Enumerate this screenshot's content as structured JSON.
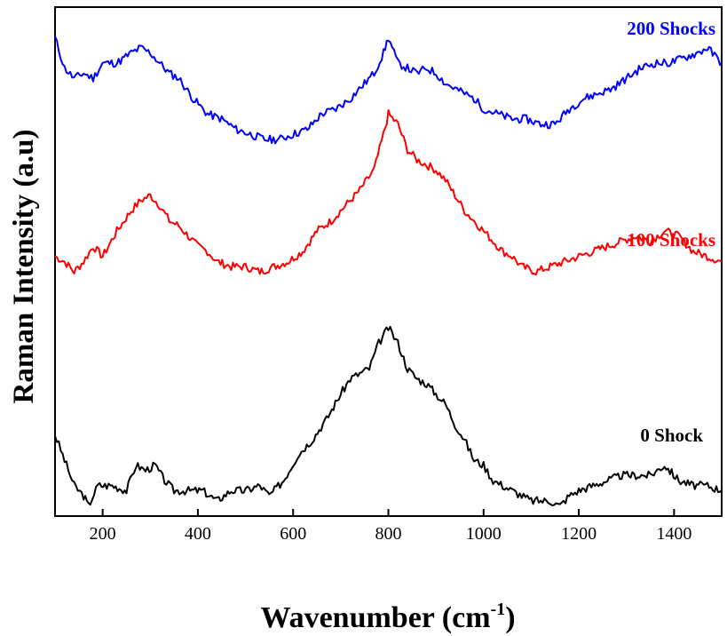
{
  "chart_data": {
    "type": "line",
    "title": "",
    "xlabel": "Wavenumber (cm",
    "xlabel_sup": "-1",
    "xlabel_close": ")",
    "ylabel": "Raman Intensity (a.u)",
    "xlim": [
      100,
      1500
    ],
    "ylim": [
      0,
      100
    ],
    "x_ticks": [
      200,
      400,
      600,
      800,
      1000,
      1200,
      1400
    ],
    "y_ticks_visible": false,
    "grid": false,
    "series": [
      {
        "name": "0 Shock",
        "color": "#000000",
        "x": [
          100,
          120,
          140,
          160,
          170,
          190,
          220,
          250,
          270,
          290,
          310,
          330,
          350,
          380,
          410,
          440,
          470,
          500,
          530,
          550,
          580,
          610,
          640,
          670,
          700,
          720,
          740,
          760,
          780,
          800,
          820,
          840,
          860,
          880,
          900,
          920,
          940,
          960,
          980,
          1000,
          1020,
          1040,
          1060,
          1080,
          1100,
          1120,
          1140,
          1160,
          1180,
          1200,
          1230,
          1260,
          1290,
          1320,
          1350,
          1380,
          1410,
          1440,
          1470,
          1500
        ],
        "y": [
          16,
          11,
          6,
          4,
          2,
          6,
          6,
          5,
          10,
          9,
          10,
          7,
          5,
          5,
          5,
          3,
          5,
          5,
          6,
          4,
          7,
          12,
          15,
          19,
          24,
          27,
          28,
          29,
          34,
          37,
          34,
          29,
          27,
          26,
          24,
          22,
          18,
          15,
          11,
          10,
          7,
          6,
          5,
          4,
          3,
          3,
          3,
          2,
          4,
          5,
          6,
          7,
          8,
          8,
          8,
          10,
          7,
          6,
          6,
          5
        ]
      },
      {
        "name": "100 Shocks",
        "color": "#ff0000",
        "x": [
          100,
          120,
          140,
          160,
          180,
          200,
          230,
          260,
          280,
          300,
          320,
          340,
          360,
          380,
          400,
          420,
          440,
          470,
          500,
          530,
          560,
          590,
          620,
          650,
          680,
          710,
          740,
          770,
          790,
          800,
          820,
          840,
          860,
          880,
          900,
          920,
          940,
          960,
          980,
          1000,
          1020,
          1040,
          1060,
          1080,
          1110,
          1140,
          1170,
          1200,
          1230,
          1260,
          1290,
          1320,
          1350,
          1380,
          1410,
          1440,
          1470,
          1500
        ],
        "y": [
          51,
          50,
          48,
          50,
          53,
          51,
          56,
          60,
          62,
          63,
          61,
          58,
          57,
          55,
          53,
          52,
          50,
          49,
          49,
          48,
          49,
          50,
          52,
          56,
          58,
          61,
          64,
          68,
          75,
          79,
          77,
          72,
          70,
          69,
          68,
          66,
          63,
          60,
          58,
          56,
          54,
          52,
          51,
          49,
          48,
          49,
          50,
          51,
          52,
          53,
          54,
          55,
          54,
          56,
          55,
          52,
          51,
          50
        ]
      },
      {
        "name": "200 Shocks",
        "color": "#0000ff",
        "x": [
          100,
          120,
          140,
          160,
          180,
          200,
          230,
          260,
          280,
          300,
          320,
          340,
          360,
          390,
          420,
          450,
          480,
          510,
          540,
          570,
          600,
          630,
          660,
          690,
          720,
          750,
          770,
          790,
          800,
          820,
          840,
          860,
          880,
          900,
          920,
          940,
          960,
          980,
          1000,
          1030,
          1060,
          1090,
          1120,
          1150,
          1180,
          1210,
          1240,
          1270,
          1300,
          1330,
          1360,
          1390,
          1420,
          1450,
          1470,
          1500
        ],
        "y": [
          94,
          88,
          86,
          87,
          86,
          89,
          89,
          91,
          92,
          91,
          89,
          87,
          86,
          82,
          79,
          78,
          76,
          75,
          74,
          74,
          75,
          76,
          79,
          80,
          82,
          85,
          87,
          91,
          94,
          89,
          88,
          87,
          88,
          87,
          85,
          84,
          83,
          82,
          80,
          79,
          78,
          78,
          77,
          77,
          80,
          82,
          83,
          84,
          86,
          88,
          89,
          89,
          90,
          91,
          92,
          89
        ]
      }
    ]
  }
}
